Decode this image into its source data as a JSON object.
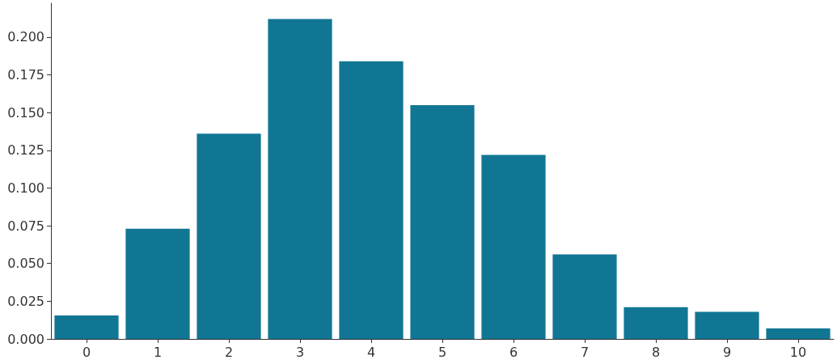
{
  "chart_data": {
    "type": "bar",
    "categories": [
      "0",
      "1",
      "2",
      "3",
      "4",
      "5",
      "6",
      "7",
      "8",
      "9",
      "10"
    ],
    "values": [
      0.0155,
      0.073,
      0.136,
      0.212,
      0.184,
      0.155,
      0.122,
      0.056,
      0.021,
      0.018,
      0.007
    ],
    "color": "#117694",
    "ylim": [
      0,
      0.2225
    ],
    "yticks": [
      {
        "value": 0,
        "label": "0.000"
      },
      {
        "value": 0.025,
        "label": "0.025"
      },
      {
        "value": 0.05,
        "label": "0.050"
      },
      {
        "value": 0.075,
        "label": "0.075"
      },
      {
        "value": 0.1,
        "label": "0.100"
      },
      {
        "value": 0.125,
        "label": "0.125"
      },
      {
        "value": 0.15,
        "label": "0.150"
      },
      {
        "value": 0.175,
        "label": "0.175"
      },
      {
        "value": 0.2,
        "label": "0.200"
      }
    ],
    "grid": false
  }
}
